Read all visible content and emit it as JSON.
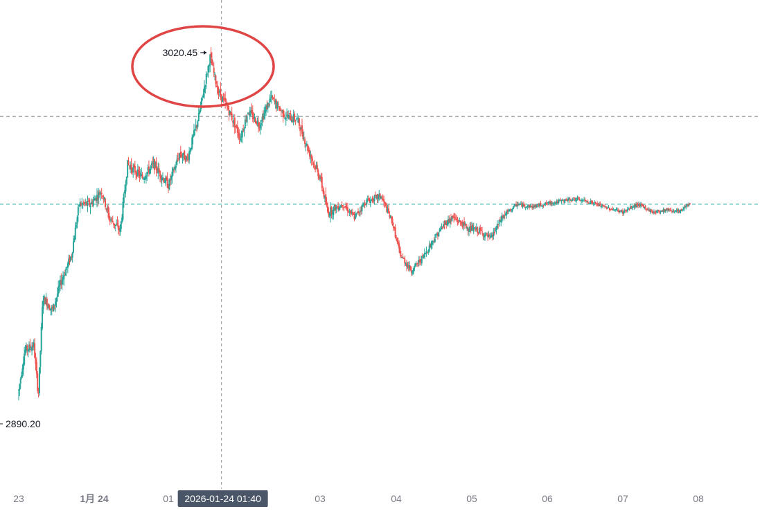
{
  "chart_data": {
    "type": "candlestick",
    "x_ticks": [
      {
        "label": "23",
        "t": 0,
        "major": false
      },
      {
        "label": "1月 24",
        "t": 1,
        "major": true
      },
      {
        "label": "01",
        "t": 2,
        "major": false
      },
      {
        "label": "03",
        "t": 4,
        "major": false
      },
      {
        "label": "04",
        "t": 5,
        "major": false
      },
      {
        "label": "05",
        "t": 6,
        "major": false
      },
      {
        "label": "06",
        "t": 7,
        "major": false
      },
      {
        "label": "07",
        "t": 8,
        "major": false
      },
      {
        "label": "08",
        "t": 9,
        "major": false
      }
    ],
    "high_annotation": {
      "label": "3020.45",
      "value": 3020.45
    },
    "low_annotation": {
      "label": "2890.20",
      "value": 2890.2
    },
    "horizontal_lines": [
      {
        "value": 2998,
        "style": "dashed-gray"
      },
      {
        "value": 2965,
        "style": "dashed-green"
      }
    ],
    "crosshair": {
      "label": "2026-01-24 01:40",
      "t": 2.7
    },
    "highlight_ellipse_color": "#e04545",
    "up_color": "#26a69a",
    "down_color": "#ef5350",
    "price_path": [
      [
        0.0,
        2895
      ],
      [
        0.08,
        2910
      ],
      [
        0.2,
        2912
      ],
      [
        0.26,
        2893
      ],
      [
        0.32,
        2930
      ],
      [
        0.45,
        2925
      ],
      [
        0.55,
        2935
      ],
      [
        0.7,
        2946
      ],
      [
        0.8,
        2965
      ],
      [
        0.95,
        2965
      ],
      [
        1.1,
        2970
      ],
      [
        1.2,
        2960
      ],
      [
        1.35,
        2955
      ],
      [
        1.45,
        2980
      ],
      [
        1.65,
        2975
      ],
      [
        1.8,
        2980
      ],
      [
        2.0,
        2972
      ],
      [
        2.15,
        2984
      ],
      [
        2.25,
        2982
      ],
      [
        2.4,
        2998
      ],
      [
        2.55,
        3020.45
      ],
      [
        2.65,
        3008
      ],
      [
        2.8,
        3000
      ],
      [
        2.95,
        2990
      ],
      [
        3.05,
        3000
      ],
      [
        3.2,
        2995
      ],
      [
        3.35,
        3005
      ],
      [
        3.55,
        2998
      ],
      [
        3.7,
        2997
      ],
      [
        3.85,
        2985
      ],
      [
        4.0,
        2975
      ],
      [
        4.1,
        2962
      ],
      [
        4.3,
        2965
      ],
      [
        4.45,
        2960
      ],
      [
        4.6,
        2966
      ],
      [
        4.8,
        2968
      ],
      [
        4.95,
        2958
      ],
      [
        5.05,
        2946
      ],
      [
        5.2,
        2940
      ],
      [
        5.35,
        2945
      ],
      [
        5.5,
        2952
      ],
      [
        5.65,
        2958
      ],
      [
        5.75,
        2960
      ],
      [
        5.95,
        2956
      ],
      [
        6.1,
        2955
      ],
      [
        6.25,
        2952
      ],
      [
        6.4,
        2960
      ],
      [
        6.6,
        2965
      ],
      [
        6.8,
        2964
      ],
      [
        6.95,
        2965
      ],
      [
        7.15,
        2966
      ],
      [
        7.35,
        2967
      ],
      [
        7.55,
        2966
      ],
      [
        7.75,
        2964
      ],
      [
        8.0,
        2962
      ],
      [
        8.2,
        2965
      ],
      [
        8.4,
        2962
      ],
      [
        8.6,
        2963
      ],
      [
        8.75,
        2962
      ],
      [
        8.85,
        2965
      ],
      [
        8.9,
        2965
      ]
    ]
  }
}
